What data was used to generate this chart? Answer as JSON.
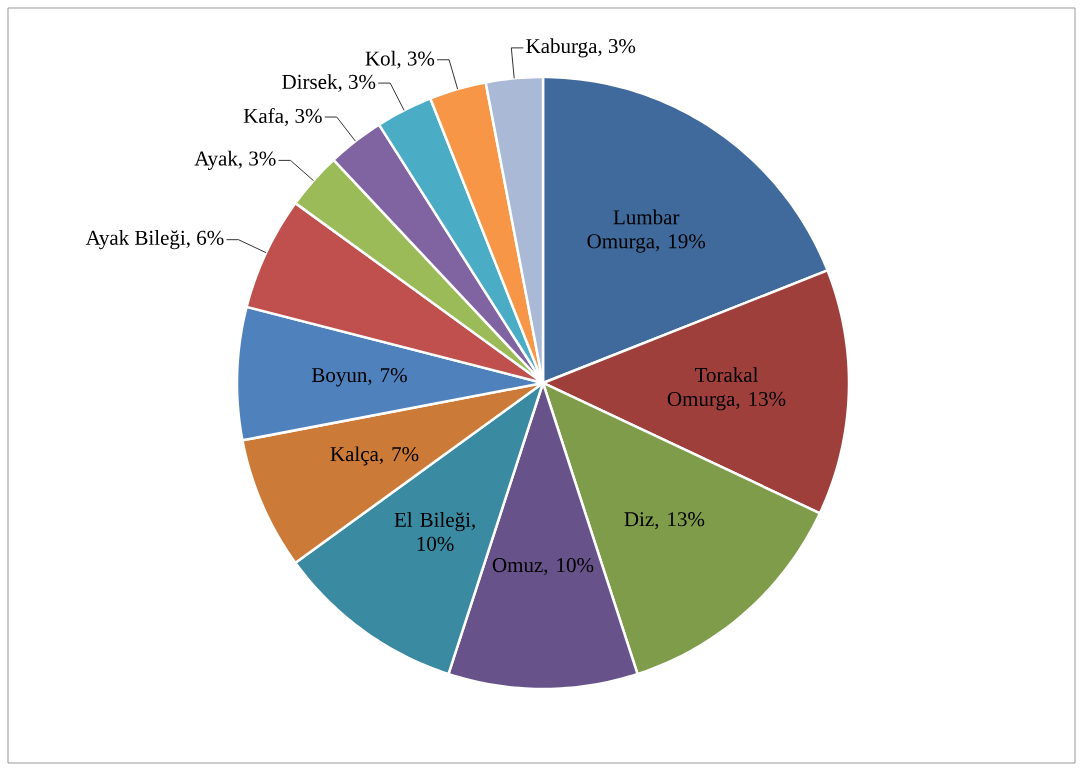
{
  "chart_data": {
    "type": "pie",
    "categories": [
      "Lumbar Omurga",
      "Torakal Omurga",
      "Diz",
      "Omuz",
      "El Bileği",
      "Kalça",
      "Boyun",
      "Ayak Bileği",
      "Ayak",
      "Kafa",
      "Dirsek",
      "Kol",
      "Kaburga"
    ],
    "values": [
      19,
      13,
      13,
      10,
      10,
      7,
      7,
      6,
      3,
      3,
      3,
      3,
      3
    ],
    "value_labels": [
      ", 19%",
      ", 13%",
      ", 13%",
      ", 10%",
      ", 10%",
      ", 7%",
      ", 7%",
      ", 6%",
      ", 3%",
      ", 3%",
      ", 3%",
      ", 3%",
      ", 3%"
    ],
    "colors": [
      "#40699c",
      "#9e3f3c",
      "#7f9c4a",
      "#67538a",
      "#3a8aa2",
      "#cc7a38",
      "#4f81bd",
      "#c0504d",
      "#9bbb59",
      "#8064a2",
      "#4bacc6",
      "#f79646",
      "#a9b9d6"
    ]
  }
}
